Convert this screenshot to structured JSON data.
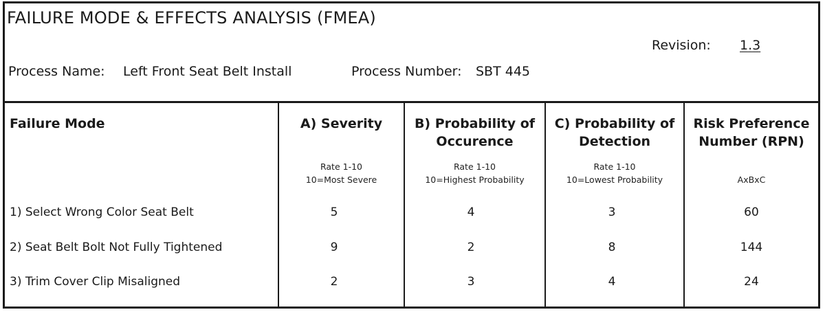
{
  "form": {
    "title": "FAILURE MODE & EFFECTS ANALYSIS (FMEA)",
    "revision_label": "Revision:",
    "revision_value": "1.3",
    "process_name_label": "Process Name:",
    "process_name_value": "Left Front Seat Belt Install",
    "process_number_label": "Process Number:",
    "process_number_value": "SBT 445"
  },
  "table": {
    "columns": [
      {
        "line1": "Failure Mode",
        "line2": "",
        "sub1": "",
        "sub2": ""
      },
      {
        "line1": "A) Severity",
        "line2": "",
        "sub1": "Rate 1-10",
        "sub2": "10=Most Severe"
      },
      {
        "line1": "B) Probability of",
        "line2": "Occurence",
        "sub1": "Rate 1-10",
        "sub2": "10=Highest Probability"
      },
      {
        "line1": "C) Probability of",
        "line2": "Detection",
        "sub1": "Rate 1-10",
        "sub2": "10=Lowest Probability"
      },
      {
        "line1": "Risk Preference",
        "line2": "Number (RPN)",
        "sub1": "",
        "sub2": "AxBxC"
      }
    ],
    "rows": [
      {
        "mode": "1) Select Wrong Color Seat Belt",
        "severity": "5",
        "occurrence": "4",
        "detection": "3",
        "rpn": "60"
      },
      {
        "mode": "2) Seat Belt Bolt Not Fully Tightened",
        "severity": "9",
        "occurrence": "2",
        "detection": "8",
        "rpn": "144"
      },
      {
        "mode": "3) Trim Cover Clip Misaligned",
        "severity": "2",
        "occurrence": "3",
        "detection": "4",
        "rpn": "24"
      }
    ]
  }
}
